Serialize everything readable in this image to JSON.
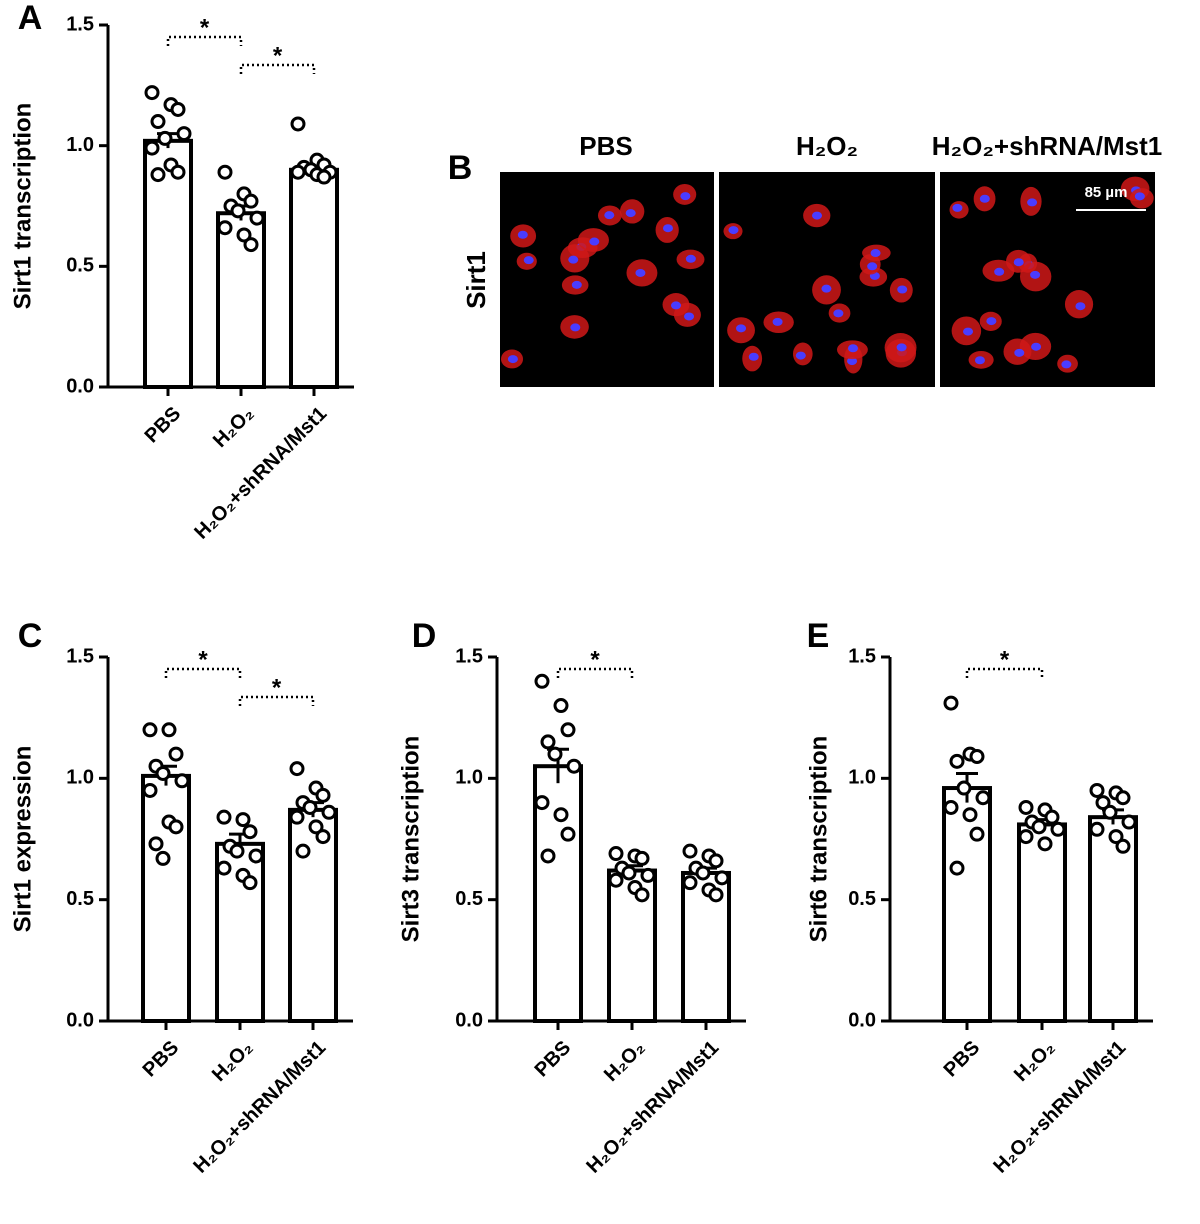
{
  "chart_data": [
    {
      "type": "bar",
      "panel": "A",
      "y_label": "Sirt1 transcription",
      "categories": [
        "PBS",
        "H₂O₂",
        "H₂O₂+shRNA/Mst1"
      ],
      "values": [
        1.02,
        0.72,
        0.9
      ],
      "errors": [
        0.03,
        0.03,
        0.02
      ],
      "points": [
        [
          1.22,
          1.17,
          1.15,
          1.1,
          1.03,
          1.05,
          0.99,
          0.92,
          0.89,
          0.88
        ],
        [
          0.89,
          0.8,
          0.77,
          0.75,
          0.73,
          0.7,
          0.66,
          0.63,
          0.59
        ],
        [
          1.09,
          0.94,
          0.92,
          0.91,
          0.9,
          0.89,
          0.89,
          0.88,
          0.87
        ]
      ],
      "ylim": [
        0,
        1.5
      ],
      "yticks": [
        {
          "value": 0,
          "label": "0.0"
        },
        0.5,
        {
          "value": 1,
          "label": "1.0"
        },
        1.5
      ],
      "comparisons": [
        {
          "between": [
            0,
            1
          ],
          "label": "*"
        },
        {
          "between": [
            1,
            2
          ],
          "label": "*"
        }
      ]
    },
    {
      "type": "bar",
      "panel": "C",
      "y_label": "Sirt1 expression",
      "categories": [
        "PBS",
        "H₂O₂",
        "H₂O₂+shRNA/Mst1"
      ],
      "values": [
        1.01,
        0.73,
        0.87
      ],
      "errors": [
        0.04,
        0.04,
        0.03
      ],
      "points": [
        [
          1.2,
          1.2,
          1.1,
          1.05,
          1.02,
          0.99,
          0.95,
          0.82,
          0.8,
          0.73,
          0.67
        ],
        [
          0.84,
          0.83,
          0.78,
          0.72,
          0.7,
          0.68,
          0.63,
          0.6,
          0.57
        ],
        [
          1.04,
          0.96,
          0.93,
          0.9,
          0.88,
          0.86,
          0.84,
          0.8,
          0.76,
          0.7
        ]
      ],
      "ylim": [
        0,
        1.5
      ],
      "yticks": [
        {
          "value": 0,
          "label": "0.0"
        },
        0.5,
        {
          "value": 1,
          "label": "1.0"
        },
        1.5
      ],
      "comparisons": [
        {
          "between": [
            0,
            1
          ],
          "label": "*"
        },
        {
          "between": [
            1,
            2
          ],
          "label": "*"
        }
      ]
    },
    {
      "type": "bar",
      "panel": "D",
      "y_label": "Sirt3 transcription",
      "categories": [
        "PBS",
        "H₂O₂",
        "H₂O₂+shRNA/Mst1"
      ],
      "values": [
        1.05,
        0.62,
        0.61
      ],
      "errors": [
        0.07,
        0.02,
        0.02
      ],
      "points": [
        [
          1.4,
          1.3,
          1.2,
          1.15,
          1.1,
          1.05,
          0.9,
          0.85,
          0.77,
          0.68
        ],
        [
          0.69,
          0.68,
          0.67,
          0.63,
          0.61,
          0.6,
          0.58,
          0.55,
          0.52
        ],
        [
          0.7,
          0.68,
          0.66,
          0.63,
          0.61,
          0.59,
          0.57,
          0.54,
          0.52
        ]
      ],
      "ylim": [
        0,
        1.5
      ],
      "yticks": [
        {
          "value": 0,
          "label": "0.0"
        },
        0.5,
        {
          "value": 1,
          "label": "1.0"
        },
        1.5
      ],
      "comparisons": [
        {
          "between": [
            0,
            1
          ],
          "label": "*"
        }
      ]
    },
    {
      "type": "bar",
      "panel": "E",
      "y_label": "Sirt6 transcription",
      "categories": [
        "PBS",
        "H₂O₂",
        "H₂O₂+shRNA/Mst1"
      ],
      "values": [
        0.96,
        0.81,
        0.84
      ],
      "errors": [
        0.06,
        0.02,
        0.03
      ],
      "points": [
        [
          1.31,
          1.1,
          1.09,
          1.07,
          0.96,
          0.92,
          0.88,
          0.85,
          0.77,
          0.63
        ],
        [
          0.88,
          0.87,
          0.84,
          0.82,
          0.8,
          0.79,
          0.76,
          0.73
        ],
        [
          0.95,
          0.94,
          0.92,
          0.9,
          0.86,
          0.82,
          0.79,
          0.76,
          0.72
        ]
      ],
      "ylim": [
        0,
        1.5
      ],
      "yticks": [
        {
          "value": 0,
          "label": "0.0"
        },
        0.5,
        {
          "value": 1,
          "label": "1.0"
        },
        1.5
      ],
      "comparisons": [
        {
          "between": [
            0,
            1
          ],
          "label": "*"
        }
      ]
    }
  ],
  "image_panel": {
    "panel": "B",
    "row_label": "Sirt1",
    "columns": [
      "PBS",
      "H₂O₂",
      "H₂O₂+shRNA/Mst1"
    ],
    "scale_bar": "85 µm"
  }
}
